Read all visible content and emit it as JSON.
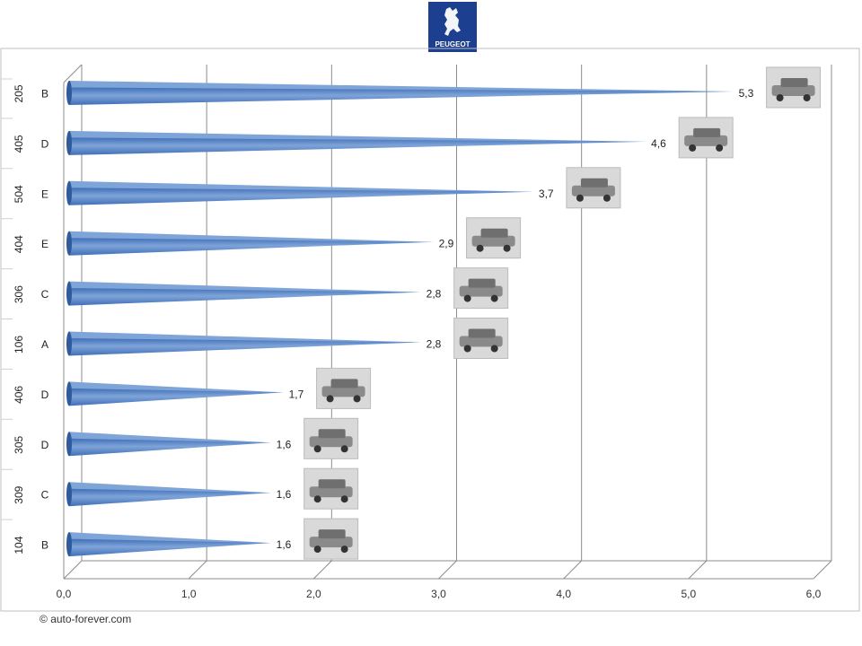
{
  "brand": {
    "logo_text": "PEUGEOT"
  },
  "footer": {
    "copyright_symbol": "©",
    "copyright_text": "auto-forever.com"
  },
  "chart_data": {
    "type": "bar",
    "orientation": "horizontal",
    "categories": [
      "205",
      "405",
      "504",
      "404",
      "306",
      "106",
      "406",
      "305",
      "309",
      "104"
    ],
    "segments": [
      "B",
      "D",
      "E",
      "E",
      "C",
      "A",
      "D",
      "D",
      "C",
      "B"
    ],
    "values": [
      5.3,
      4.6,
      3.7,
      2.9,
      2.8,
      2.8,
      1.7,
      1.6,
      1.6,
      1.6
    ],
    "value_labels": [
      "5,3",
      "4,6",
      "3,7",
      "2,9",
      "2,8",
      "2,8",
      "1,7",
      "1,6",
      "1,6",
      "1,6"
    ],
    "xlim": [
      0,
      6
    ],
    "x_ticks": [
      "0,0",
      "1,0",
      "2,0",
      "3,0",
      "4,0",
      "5,0",
      "6,0"
    ],
    "grid": true,
    "bar_color": "#3f6fb8",
    "bar_color_light": "#7fa4d8",
    "title": "",
    "xlabel": "",
    "ylabel": ""
  }
}
